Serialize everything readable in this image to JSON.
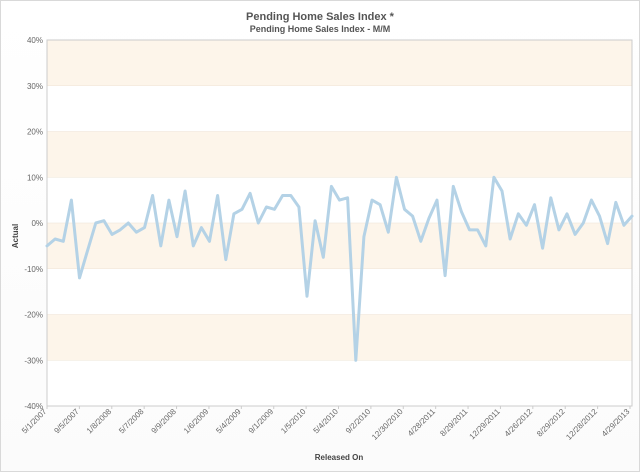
{
  "chart_data": {
    "type": "line",
    "title": "Pending Home Sales Index *",
    "subtitle": "Pending Home Sales Index - M/M",
    "xlabel": "Released On",
    "ylabel": "Actual",
    "ylim": [
      -40,
      40
    ],
    "yticks": [
      "40%",
      "30%",
      "20%",
      "10%",
      "0%",
      "-10%",
      "-20%",
      "-30%",
      "-40%"
    ],
    "x_tick_labels": [
      "5/1/2007",
      "9/5/2007",
      "1/8/2008",
      "5/7/2008",
      "9/9/2008",
      "1/6/2009",
      "5/4/2009",
      "9/1/2009",
      "1/5/2010",
      "5/4/2010",
      "9/2/2010",
      "12/30/2010",
      "4/28/2011",
      "8/29/2011",
      "12/29/2011",
      "4/26/2012",
      "8/29/2012",
      "12/28/2012",
      "4/29/2013"
    ],
    "grid": "horizontal alternating bands",
    "colors": {
      "line": "#b4d2e6",
      "band_shaded": "#fdf5ea",
      "band_plain": "#ffffff",
      "axis": "#cccccc"
    },
    "series": [
      {
        "values": [
          -5,
          -3.5,
          -4,
          5,
          -12,
          -6,
          0,
          0.5,
          -2.5,
          -1.5,
          0,
          -2,
          -1,
          6,
          -5,
          5,
          -3,
          7,
          -5,
          -1,
          -4,
          6,
          -8,
          2,
          3,
          6.5,
          0,
          3.5,
          3,
          6,
          6,
          3.5,
          -16,
          0.5,
          -7.5,
          8,
          5,
          5.5,
          -30,
          -3,
          5,
          4,
          -2,
          10,
          3,
          1.5,
          -4,
          1,
          5,
          -11.5,
          8,
          2.5,
          -1.5,
          -1.5,
          -5,
          10,
          7,
          -3.5,
          2,
          -0.5,
          4,
          -5.5,
          5.5,
          -1.5,
          2,
          -2.5,
          0,
          5,
          1.5,
          -4.5,
          4.5,
          -0.5,
          1.5
        ]
      }
    ]
  }
}
